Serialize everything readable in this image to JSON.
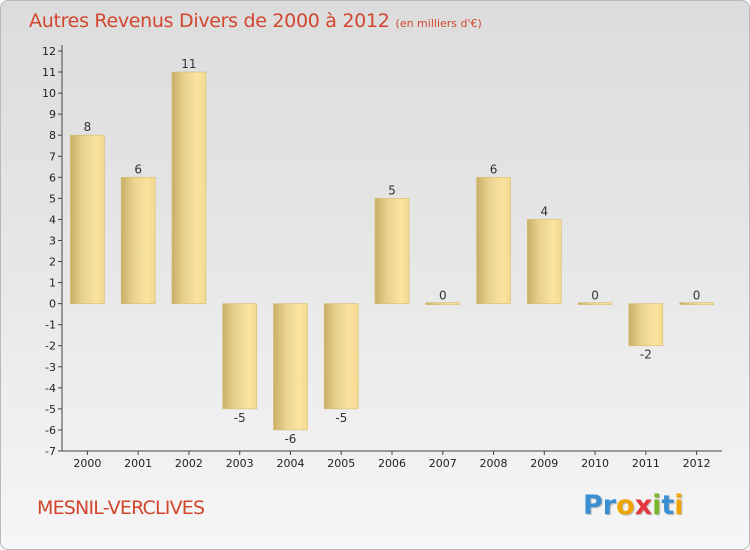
{
  "chart_data": {
    "type": "bar",
    "title": "Autres Revenus Divers de 2000 à 2012",
    "subtitle": "(en milliers d'€)",
    "categories": [
      "2000",
      "2001",
      "2002",
      "2003",
      "2004",
      "2005",
      "2006",
      "2007",
      "2008",
      "2009",
      "2010",
      "2011",
      "2012"
    ],
    "values": [
      8,
      6,
      11,
      -5,
      -6,
      -5,
      5,
      0,
      6,
      4,
      0,
      -2,
      0
    ],
    "ylim": [
      -7,
      12
    ],
    "yticks": [
      12,
      11,
      10,
      9,
      8,
      7,
      6,
      5,
      4,
      3,
      2,
      1,
      0,
      -1,
      -2,
      -3,
      -4,
      -5,
      -6,
      -7
    ],
    "grid": false,
    "colors": {
      "bar_light": "#fbe3a0",
      "bar_dark": "#c8ae66"
    }
  },
  "footer": {
    "commune": "MESNIL-VERCLIVES",
    "brand": [
      {
        "t": "P",
        "c": "#3a8fd2"
      },
      {
        "t": "r",
        "c": "#3a8fd2"
      },
      {
        "t": "o",
        "c": "#f0a400"
      },
      {
        "t": "x",
        "c": "#e4373d"
      },
      {
        "t": "i",
        "c": "#7ab52a"
      },
      {
        "t": "t",
        "c": "#3a8fd2"
      },
      {
        "t": "i",
        "c": "#f0a400"
      }
    ]
  }
}
